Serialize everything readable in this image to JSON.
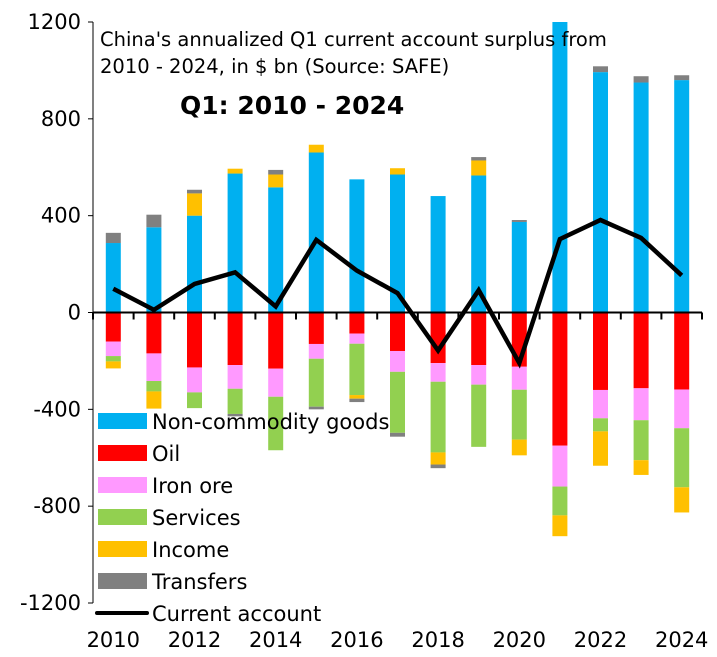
{
  "chart_data": {
    "type": "bar",
    "stacked": true,
    "title": "China's annualized Q1 current account surplus from 2010 - 2024, in $ bn (Source: SAFE)",
    "title_lines": [
      "China's annualized Q1 current account surplus from",
      "2010 - 2024, in $ bn (Source: SAFE)"
    ],
    "subtitle": "Q1: 2010 - 2024",
    "xlabel": "",
    "ylabel": "",
    "ylim": [
      -1200,
      1200
    ],
    "yticks": [
      -1200,
      -800,
      -400,
      0,
      400,
      800,
      1200
    ],
    "ytick_labels": [
      "-1200",
      "-800",
      "-400",
      "0",
      "400",
      "800",
      "1200"
    ],
    "categories": [
      "2010",
      "2011",
      "2012",
      "2013",
      "2014",
      "2015",
      "2016",
      "2017",
      "2018",
      "2019",
      "2020",
      "2021",
      "2022",
      "2023",
      "2024"
    ],
    "xtick_labels": [
      "2010",
      "2012",
      "2014",
      "2016",
      "2018",
      "2020",
      "2022",
      "2024"
    ],
    "grid": false,
    "legend_position": "bottom-left",
    "series": [
      {
        "name": "Non-commodity goods",
        "kind": "bar",
        "color": "#00B0F0",
        "values": [
          287,
          352,
          400,
          574,
          517,
          661,
          550,
          570,
          481,
          566,
          374,
          1227,
          993,
          950,
          960
        ]
      },
      {
        "name": "Oil",
        "kind": "bar",
        "color": "#FF0000",
        "values": [
          -120,
          -169,
          -227,
          -217,
          -232,
          -130,
          -87,
          -159,
          -209,
          -217,
          -224,
          -550,
          -320,
          -313,
          -318
        ]
      },
      {
        "name": "Iron ore",
        "kind": "bar",
        "color": "#FF99FF",
        "values": [
          -60,
          -114,
          -103,
          -98,
          -116,
          -61,
          -42,
          -86,
          -77,
          -81,
          -95,
          -169,
          -117,
          -132,
          -160
        ]
      },
      {
        "name": "Services",
        "kind": "bar",
        "color": "#92D050",
        "values": [
          -22,
          -43,
          -65,
          -104,
          -221,
          -198,
          -212,
          -252,
          -292,
          -257,
          -206,
          -119,
          -54,
          -165,
          -244
        ]
      },
      {
        "name": "Income",
        "kind": "bar",
        "color": "#FFC000",
        "values": [
          -29,
          -71,
          92,
          20,
          53,
          32,
          -15,
          26,
          -50,
          62,
          -65,
          -86,
          -142,
          -61,
          -104
        ]
      },
      {
        "name": "Transfers",
        "kind": "bar",
        "color": "#808080",
        "values": [
          42,
          52,
          15,
          -10,
          19,
          -11,
          -14,
          -16,
          -15,
          14,
          8,
          0,
          24,
          26,
          20
        ]
      },
      {
        "name": "Current account",
        "kind": "line",
        "color": "#000000",
        "values": [
          98,
          11,
          118,
          166,
          25,
          300,
          173,
          80,
          -157,
          92,
          -209,
          303,
          382,
          308,
          153
        ]
      }
    ]
  }
}
